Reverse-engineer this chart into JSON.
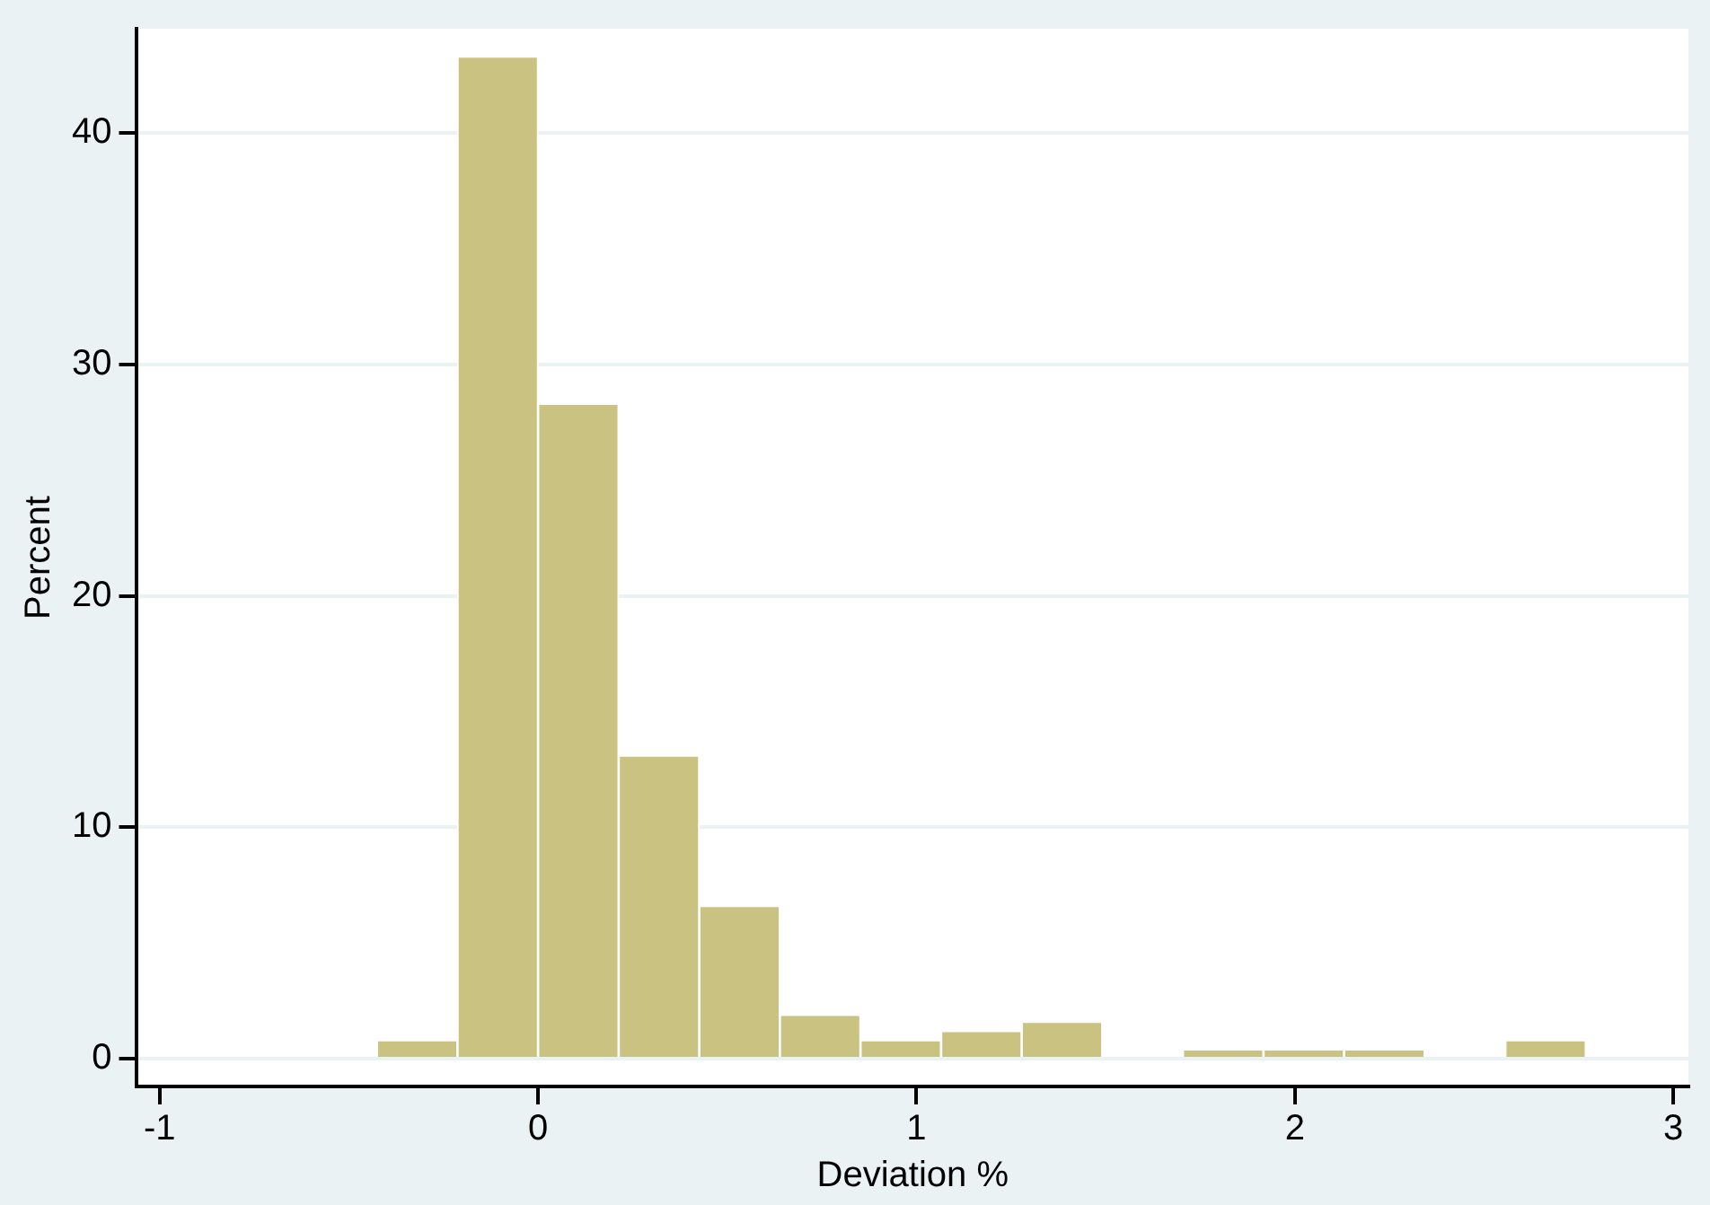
{
  "chart_data": {
    "type": "histogram",
    "xlabel": "Deviation %",
    "ylabel": "Percent",
    "bins": [
      -0.426,
      -0.213,
      0,
      0.213,
      0.426,
      0.639,
      0.852,
      1.065,
      1.278,
      1.491,
      1.704,
      1.917,
      2.13,
      2.343,
      2.556,
      2.769
    ],
    "values": [
      0.8,
      43.3,
      28.3,
      13.1,
      6.6,
      1.9,
      0.8,
      1.2,
      1.6,
      0,
      0.4,
      0.4,
      0.4,
      0,
      0.8
    ],
    "color": "#cac281",
    "xlim": [
      -1.06,
      3.04
    ],
    "xticks": [
      -1,
      0,
      1,
      2,
      3
    ],
    "ylim": [
      -1.2,
      44.5
    ],
    "yticks": [
      0,
      10,
      20,
      30,
      40
    ],
    "grid": "y"
  }
}
